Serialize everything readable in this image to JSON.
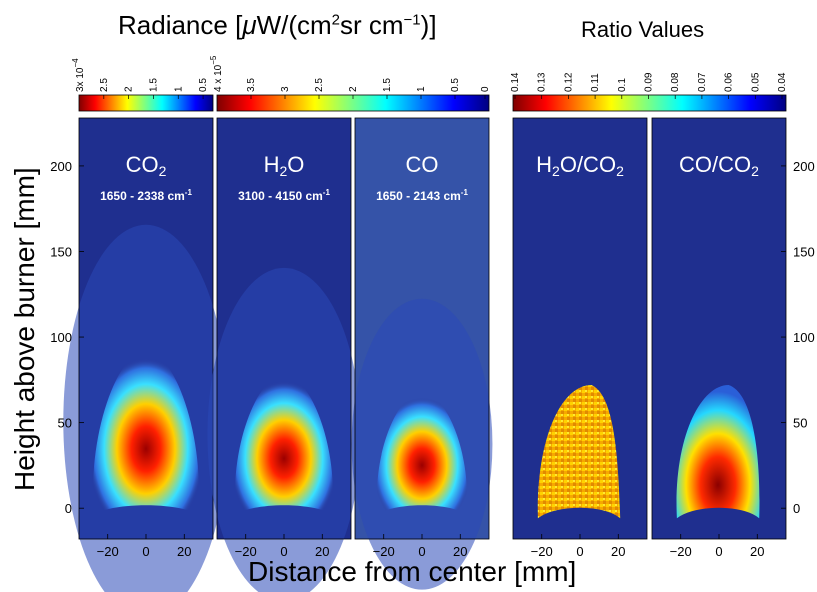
{
  "chart_data": {
    "type": "heatmap",
    "x": {
      "label": "Distance from center [mm]",
      "range": [
        -35,
        35
      ],
      "ticks": [
        -20,
        0,
        20
      ]
    },
    "y": {
      "label": "Height above burner [mm]",
      "range": [
        -18,
        228
      ],
      "ticks": [
        0,
        50,
        100,
        150,
        200
      ]
    },
    "radiance_colorbar": {
      "title_prefix": "Radiance [",
      "title_mu": "μ",
      "title_mid": "W/(cm",
      "title_sup1": "2",
      "title_mid2": "sr cm",
      "title_sup2": "−1",
      "title_suffix": ")]",
      "exponent_labels": [
        {
          "panel": "CO2",
          "base": "3x 10",
          "exp": "−4"
        },
        {
          "panel": "H2O",
          "base": "4 x 10",
          "exp": "−5"
        }
      ],
      "co2_ticks": [
        {
          "label": "2.5",
          "value": 2.5
        },
        {
          "label": "2",
          "value": 2.0
        },
        {
          "label": "1.5",
          "value": 1.5
        },
        {
          "label": "1",
          "value": 1.0
        },
        {
          "label": "0.5",
          "value": 0.5
        }
      ],
      "h2o_co_ticks": [
        {
          "label": "3.5",
          "value": 3.5
        },
        {
          "label": "3",
          "value": 3.0
        },
        {
          "label": "2.5",
          "value": 2.5
        },
        {
          "label": "2",
          "value": 2.0
        },
        {
          "label": "1.5",
          "value": 1.5
        },
        {
          "label": "1",
          "value": 1.0
        },
        {
          "label": "0.5",
          "value": 0.5
        },
        {
          "label": "0",
          "value": 0.0
        }
      ]
    },
    "ratio_colorbar": {
      "title": "Ratio Values",
      "ticks": [
        "0.14",
        "0.13",
        "0.12",
        "0.11",
        "0.1",
        "0.09",
        "0.08",
        "0.07",
        "0.06",
        "0.05",
        "0.04"
      ]
    },
    "panels": [
      {
        "id": "co2",
        "species": "CO",
        "sub": "2",
        "range_text": "1650 - 2338 cm",
        "range_sup": "-1",
        "peak_height_mm": 28,
        "flame_top_mm": 92,
        "half_width_mm": 27
      },
      {
        "id": "h2o",
        "species": "H",
        "sub": "2",
        "tail": "O",
        "range_text": "3100 - 4150 cm",
        "range_sup": "-1",
        "peak_height_mm": 28,
        "flame_top_mm": 78,
        "half_width_mm": 25
      },
      {
        "id": "co",
        "species": "CO",
        "range_text": "1650 - 2143 cm",
        "range_sup": "-1",
        "peak_height_mm": 24,
        "flame_top_mm": 68,
        "half_width_mm": 23
      },
      {
        "id": "h2o_co2",
        "species": "H",
        "sub": "2",
        "tail": "O/CO",
        "sub2": "2",
        "ratio_value": 0.115,
        "flame_top_mm": 72,
        "half_width_mm": 20
      },
      {
        "id": "co_co2",
        "species": "CO/CO",
        "sub": "2",
        "flame_top_mm": 72,
        "half_width_mm": 20
      }
    ]
  },
  "colors": {
    "background_low": "#1f2f8f",
    "co_background": "#3553a8",
    "jet": [
      "#000080",
      "#0000ff",
      "#00ffff",
      "#ffff00",
      "#ff0000",
      "#800000"
    ]
  }
}
